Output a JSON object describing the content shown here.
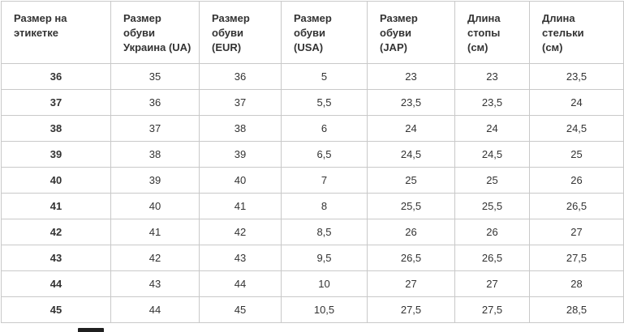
{
  "colors": {
    "background": "#ffffff",
    "border": "#c9c9c9",
    "text": "#333333"
  },
  "table": {
    "headers": [
      "Размер на\nэтикетке",
      "Размер\nобуви\nУкраина (UA)",
      "Размер\nобуви\n(EUR)",
      "Размер\nобуви\n(USA)",
      "Размер\nобуви\n(JAP)",
      "Длина\nстопы\n(см)",
      "Длина\nстельки\n(см)"
    ],
    "rows": [
      [
        "36",
        "35",
        "36",
        "5",
        "23",
        "23",
        "23,5"
      ],
      [
        "37",
        "36",
        "37",
        "5,5",
        "23,5",
        "23,5",
        "24"
      ],
      [
        "38",
        "37",
        "38",
        "6",
        "24",
        "24",
        "24,5"
      ],
      [
        "39",
        "38",
        "39",
        "6,5",
        "24,5",
        "24,5",
        "25"
      ],
      [
        "40",
        "39",
        "40",
        "7",
        "25",
        "25",
        "26"
      ],
      [
        "41",
        "40",
        "41",
        "8",
        "25,5",
        "25,5",
        "26,5"
      ],
      [
        "42",
        "41",
        "42",
        "8,5",
        "26",
        "26",
        "27"
      ],
      [
        "43",
        "42",
        "43",
        "9,5",
        "26,5",
        "26,5",
        "27,5"
      ],
      [
        "44",
        "43",
        "44",
        "10",
        "27",
        "27",
        "28"
      ],
      [
        "45",
        "44",
        "45",
        "10,5",
        "27,5",
        "27,5",
        "28,5"
      ]
    ]
  }
}
